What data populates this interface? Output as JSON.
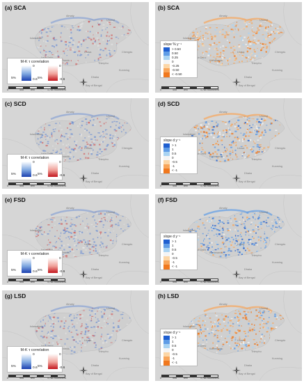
{
  "panels": [
    {
      "title": "(a) SCA",
      "legend": "corr"
    },
    {
      "title": "(b) SCA",
      "legend": "slope",
      "slope_title": "slope % y⁻¹",
      "slope_labels": [
        "> 0.50",
        "0.50",
        "0.25",
        "0",
        "-0.25",
        "-0.50",
        "< -0.50"
      ]
    },
    {
      "title": "(c) SCD",
      "legend": "corr"
    },
    {
      "title": "(d) SCD",
      "legend": "slope",
      "slope_title": "slope d y⁻¹",
      "slope_labels": [
        "> 1",
        "1",
        "0.5",
        "0",
        "-0.5",
        "-1",
        "< -1"
      ]
    },
    {
      "title": "(e) FSD",
      "legend": "corr"
    },
    {
      "title": "(f) FSD",
      "legend": "slope",
      "slope_title": "slope d y⁻¹",
      "slope_labels": [
        "> 1",
        "1",
        "0.5",
        "0",
        "-0.5",
        "-1",
        "< -1"
      ]
    },
    {
      "title": "(g) LSD",
      "legend": "corr"
    },
    {
      "title": "(h) LSD",
      "legend": "slope",
      "slope_title": "slope d y⁻¹",
      "slope_labels": [
        "> 1",
        "1",
        "0.5",
        "0",
        "-0.5",
        "-1",
        "< -1"
      ]
    }
  ],
  "corr_legend": {
    "title": "M-K τ correlation",
    "blue_top": "0",
    "blue_sig": "5%",
    "blue_bottom": "0.6",
    "red_top": "0",
    "red_sig": "5%",
    "red_bottom": "-0.6"
  },
  "scale_labels": [
    "0",
    "445",
    "890",
    "1,780 Kilometers"
  ],
  "compass_letter": "N",
  "place_names": [
    "Almaty",
    "Urumqi",
    "Lhasa",
    "Kathmandu",
    "Thimphu",
    "Dhaka",
    "New Delhi",
    "Kunming",
    "Bay of Bengal",
    "Chengdu",
    "Islamabad"
  ],
  "colors": {
    "map_background": "#d6d6d6",
    "land": "#c9c9c9",
    "increase_blue": "#3b6fd4",
    "decrease_red": "#d12a2a",
    "slope_swatches": [
      "#1f5fd0",
      "#5f9ce6",
      "#a9d3f2",
      "#f4f4f4",
      "#fcd6a6",
      "#f8a55a",
      "#f0781e"
    ]
  }
}
